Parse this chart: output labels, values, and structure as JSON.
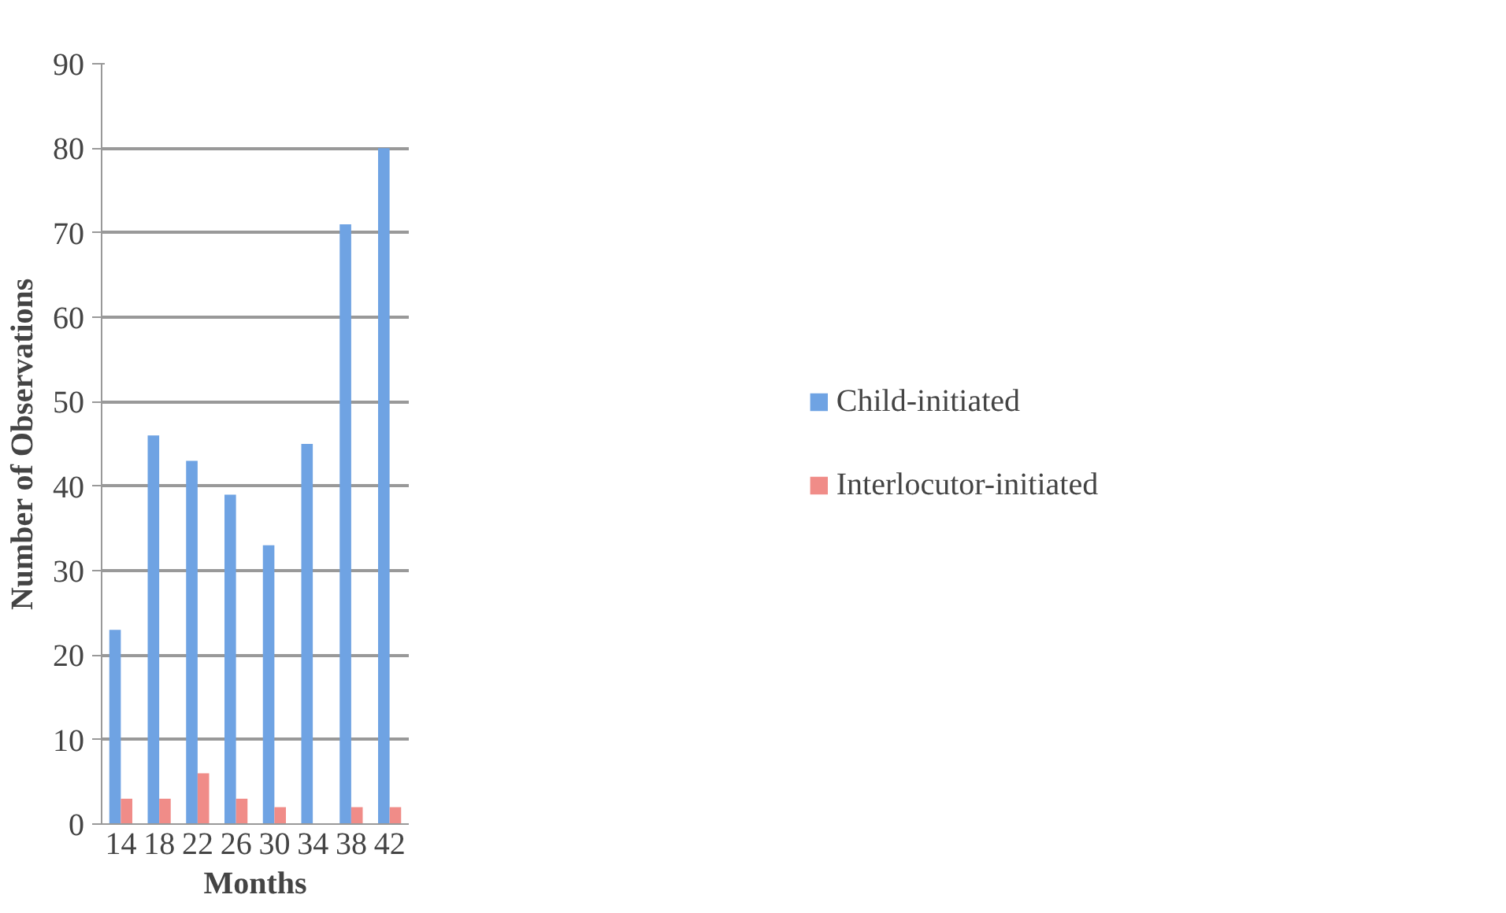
{
  "chart_data": {
    "type": "bar",
    "xlabel": "Months",
    "ylabel": "Number of Observations",
    "categories": [
      "14",
      "18",
      "22",
      "26",
      "30",
      "34",
      "38",
      "42"
    ],
    "series": [
      {
        "name": "Child-initiated",
        "color": "#6fa3e3",
        "values": [
          23,
          46,
          43,
          39,
          33,
          45,
          71,
          80
        ]
      },
      {
        "name": "Interlocutor-initiated",
        "color": "#f08c88",
        "values": [
          3,
          3,
          6,
          3,
          2,
          0,
          2,
          2
        ]
      }
    ],
    "ylim": [
      0,
      90
    ],
    "yticks": [
      0,
      10,
      20,
      30,
      40,
      50,
      60,
      70,
      80,
      90
    ],
    "grid": "y",
    "legend": "right"
  }
}
